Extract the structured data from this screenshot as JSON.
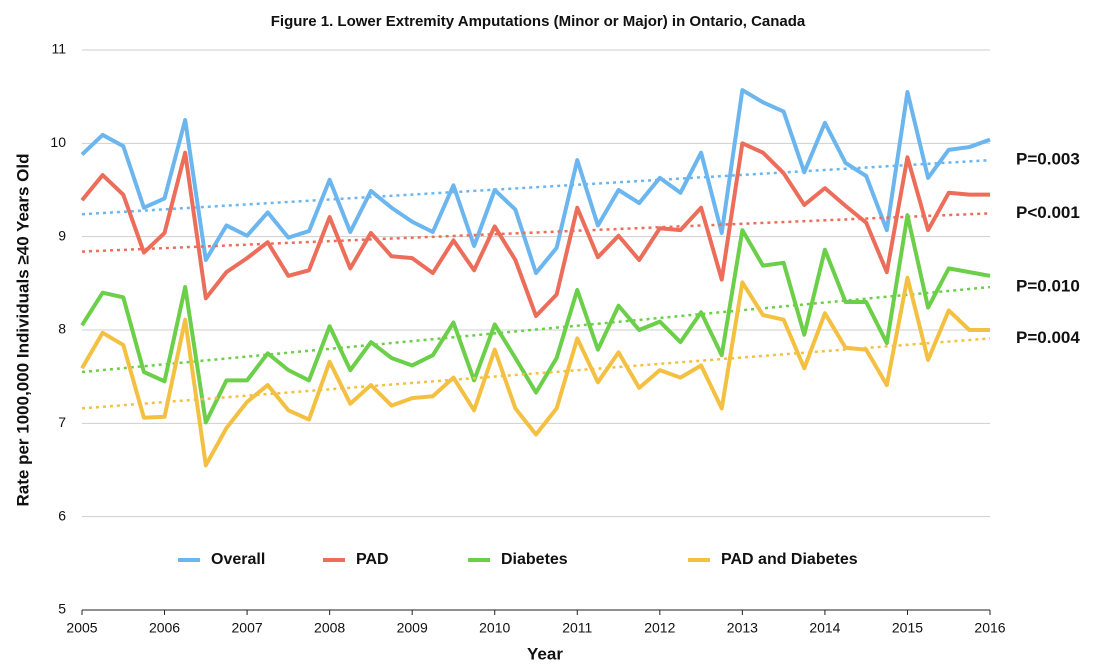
{
  "chart_data": {
    "type": "line",
    "title": "Figure 1.  Lower Extremity Amputations (Minor or Major) in Ontario, Canada",
    "x_label": "Year",
    "y_label": "Rate per 1000,000 Individuals ≥40 Years Old",
    "x": [
      2005,
      2005.25,
      2005.5,
      2005.75,
      2006,
      2006.25,
      2006.5,
      2006.75,
      2007,
      2007.25,
      2007.5,
      2007.75,
      2008,
      2008.25,
      2008.5,
      2008.75,
      2009,
      2009.25,
      2009.5,
      2009.75,
      2010,
      2010.25,
      2010.5,
      2010.75,
      2011,
      2011.25,
      2011.5,
      2011.75,
      2012,
      2012.25,
      2012.5,
      2012.75,
      2013,
      2013.25,
      2013.5,
      2013.75,
      2014,
      2014.25,
      2014.5,
      2014.75,
      2015,
      2015.25,
      2015.5,
      2015.75,
      2016
    ],
    "xlim": [
      2005,
      2016
    ],
    "xticks": [
      2005,
      2006,
      2007,
      2008,
      2009,
      2010,
      2011,
      2012,
      2013,
      2014,
      2015,
      2016
    ],
    "ylim": [
      5,
      11
    ],
    "yticks": [
      5,
      6,
      7,
      8,
      9,
      10,
      11
    ],
    "grid": true,
    "legend": "bottom",
    "series": [
      {
        "name": "Overall",
        "color": "#6cb6f0",
        "p_label": "P=0.003",
        "p_color": "#4aa8ee",
        "trend": [
          9.24,
          9.82
        ],
        "values": [
          9.88,
          10.09,
          9.97,
          9.31,
          9.41,
          10.25,
          8.75,
          9.12,
          9.01,
          9.26,
          8.99,
          9.06,
          9.61,
          9.05,
          9.49,
          9.31,
          9.16,
          9.05,
          9.55,
          8.9,
          9.5,
          9.29,
          8.61,
          8.88,
          9.82,
          9.12,
          9.5,
          9.36,
          9.63,
          9.47,
          9.9,
          9.04,
          10.57,
          10.44,
          10.34,
          9.69,
          10.22,
          9.79,
          9.65,
          9.07,
          10.55,
          9.63,
          9.93,
          9.96,
          10.04
        ]
      },
      {
        "name": "PAD",
        "color": "#ec6e5a",
        "p_label": "P<0.001",
        "p_color": "#e0402a",
        "trend": [
          8.84,
          9.25
        ],
        "values": [
          9.39,
          9.66,
          9.45,
          8.83,
          9.04,
          9.9,
          8.34,
          8.62,
          8.77,
          8.94,
          8.58,
          8.64,
          9.21,
          8.66,
          9.04,
          8.79,
          8.77,
          8.61,
          8.96,
          8.64,
          9.11,
          8.75,
          8.15,
          8.38,
          9.31,
          8.78,
          9.01,
          8.75,
          9.09,
          9.07,
          9.31,
          8.54,
          10.0,
          9.9,
          9.68,
          9.34,
          9.52,
          9.33,
          9.15,
          8.62,
          9.85,
          9.07,
          9.47,
          9.45,
          9.45
        ]
      },
      {
        "name": "Diabetes",
        "color": "#6ccf4a",
        "p_label": "P=0.010",
        "p_color": "#4cba2a",
        "trend": [
          7.55,
          8.46
        ],
        "values": [
          8.05,
          8.4,
          8.35,
          7.55,
          7.45,
          8.46,
          7.01,
          7.46,
          7.46,
          7.75,
          7.57,
          7.46,
          8.04,
          7.57,
          7.87,
          7.7,
          7.62,
          7.73,
          8.08,
          7.46,
          8.06,
          7.7,
          7.33,
          7.7,
          8.43,
          7.79,
          8.26,
          8.0,
          8.09,
          7.87,
          8.19,
          7.73,
          9.07,
          8.69,
          8.72,
          7.95,
          8.86,
          8.3,
          8.3,
          7.86,
          9.23,
          8.24,
          8.66,
          8.62,
          8.58
        ]
      },
      {
        "name": "PAD and Diabetes",
        "color": "#f4c042",
        "p_label": "P=0.004",
        "p_color": "#f2b830",
        "trend": [
          7.16,
          7.91
        ],
        "values": [
          7.59,
          7.97,
          7.84,
          7.06,
          7.07,
          8.11,
          6.55,
          6.95,
          7.23,
          7.41,
          7.14,
          7.04,
          7.66,
          7.21,
          7.41,
          7.19,
          7.27,
          7.29,
          7.49,
          7.14,
          7.79,
          7.16,
          6.88,
          7.16,
          7.91,
          7.44,
          7.76,
          7.38,
          7.57,
          7.49,
          7.62,
          7.16,
          8.51,
          8.16,
          8.11,
          7.59,
          8.18,
          7.81,
          7.79,
          7.41,
          8.56,
          7.68,
          8.21,
          8.0,
          8.0
        ]
      }
    ]
  }
}
